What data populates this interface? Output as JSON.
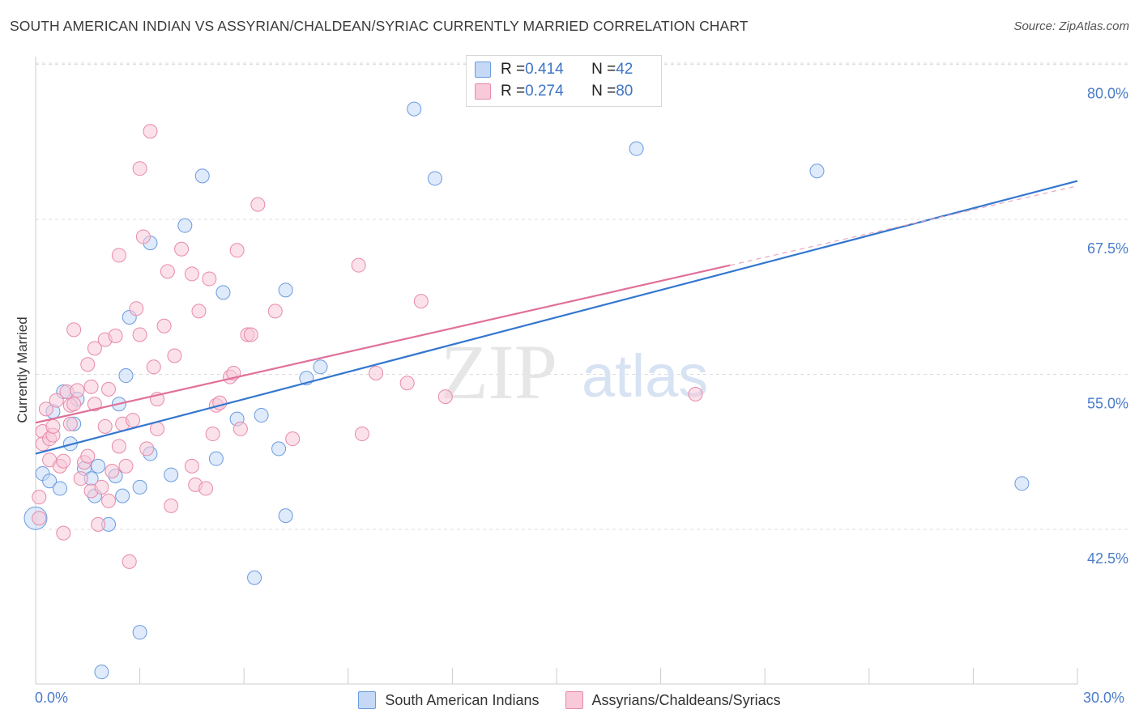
{
  "chart_data": {
    "type": "scatter",
    "title": "SOUTH AMERICAN INDIAN VS ASSYRIAN/CHALDEAN/SYRIAC CURRENTLY MARRIED CORRELATION CHART",
    "source": "Source: ZipAtlas.com",
    "ylabel": "Currently Married",
    "xlabel": "",
    "xlim": [
      0,
      30
    ],
    "ylim": [
      31,
      82
    ],
    "x_tick_labels": {
      "left": "0.0%",
      "right": "30.0%"
    },
    "y_ticks": [
      {
        "value": 42.5,
        "label": "42.5%"
      },
      {
        "value": 55.0,
        "label": "55.0%"
      },
      {
        "value": 67.5,
        "label": "67.5%"
      },
      {
        "value": 80.0,
        "label": "80.0%"
      }
    ],
    "grid": true,
    "watermark": {
      "zip": "ZIP",
      "atlas": "atlas"
    },
    "legend_placement": "top-center",
    "series": [
      {
        "name": "South American Indians",
        "color": "#6a9be0",
        "fill": "#c5d8f5",
        "stats": {
          "r_label": "R = ",
          "r": "0.414",
          "n_label": "N = ",
          "n": "42"
        },
        "trend": {
          "x0": 0,
          "y0": 48.6,
          "x1": 30,
          "y1": 70.6
        },
        "points": [
          [
            0.0,
            43.4
          ],
          [
            0.2,
            47.0
          ],
          [
            0.4,
            46.4
          ],
          [
            0.5,
            52.0
          ],
          [
            0.7,
            45.8
          ],
          [
            0.8,
            53.6
          ],
          [
            1.0,
            49.4
          ],
          [
            1.1,
            51.0
          ],
          [
            1.2,
            53.0
          ],
          [
            1.4,
            47.4
          ],
          [
            1.6,
            46.6
          ],
          [
            1.7,
            45.2
          ],
          [
            1.8,
            47.6
          ],
          [
            1.9,
            31.0
          ],
          [
            2.1,
            42.9
          ],
          [
            2.3,
            46.8
          ],
          [
            2.4,
            52.6
          ],
          [
            2.5,
            45.2
          ],
          [
            2.6,
            54.9
          ],
          [
            2.7,
            59.6
          ],
          [
            3.0,
            34.2
          ],
          [
            3.0,
            45.9
          ],
          [
            3.3,
            65.6
          ],
          [
            3.3,
            48.6
          ],
          [
            3.9,
            46.9
          ],
          [
            4.3,
            67.0
          ],
          [
            4.8,
            71.0
          ],
          [
            5.2,
            48.2
          ],
          [
            5.4,
            61.6
          ],
          [
            5.8,
            51.4
          ],
          [
            6.3,
            38.6
          ],
          [
            6.5,
            51.7
          ],
          [
            7.0,
            49.0
          ],
          [
            7.2,
            61.8
          ],
          [
            7.2,
            43.6
          ],
          [
            7.8,
            54.7
          ],
          [
            8.2,
            55.6
          ],
          [
            10.9,
            76.4
          ],
          [
            11.5,
            70.8
          ],
          [
            17.3,
            73.2
          ],
          [
            22.5,
            71.4
          ],
          [
            28.4,
            46.2
          ]
        ]
      },
      {
        "name": "Assyrians/Chaldeans/Syriacs",
        "color": "#e88aa8",
        "fill": "#f8c9d8",
        "stats": {
          "r_label": "R = ",
          "r": "0.274",
          "n_label": "N = ",
          "n": "80"
        },
        "trend": {
          "x0": 0,
          "y0": 51.1,
          "x1": 20,
          "y1": 63.8
        },
        "trend_dashed": {
          "x0": 20,
          "y0": 63.8,
          "x1": 30,
          "y1": 70.2
        },
        "points": [
          [
            0.1,
            45.1
          ],
          [
            0.1,
            43.4
          ],
          [
            0.2,
            50.4
          ],
          [
            0.2,
            49.4
          ],
          [
            0.3,
            52.2
          ],
          [
            0.4,
            48.1
          ],
          [
            0.4,
            49.8
          ],
          [
            0.5,
            50.1
          ],
          [
            0.5,
            50.8
          ],
          [
            0.6,
            52.9
          ],
          [
            0.7,
            47.6
          ],
          [
            0.8,
            42.2
          ],
          [
            0.8,
            48.0
          ],
          [
            0.9,
            53.6
          ],
          [
            1.0,
            51.0
          ],
          [
            1.0,
            52.5
          ],
          [
            1.1,
            58.6
          ],
          [
            1.1,
            52.6
          ],
          [
            1.2,
            53.7
          ],
          [
            1.3,
            46.6
          ],
          [
            1.4,
            47.9
          ],
          [
            1.5,
            48.4
          ],
          [
            1.5,
            55.8
          ],
          [
            1.6,
            54.0
          ],
          [
            1.6,
            45.6
          ],
          [
            1.7,
            57.1
          ],
          [
            1.7,
            52.6
          ],
          [
            1.8,
            42.9
          ],
          [
            1.9,
            45.9
          ],
          [
            2.0,
            50.8
          ],
          [
            2.0,
            57.8
          ],
          [
            2.1,
            44.8
          ],
          [
            2.1,
            53.8
          ],
          [
            2.2,
            47.2
          ],
          [
            2.3,
            58.1
          ],
          [
            2.4,
            64.6
          ],
          [
            2.4,
            49.2
          ],
          [
            2.5,
            51.0
          ],
          [
            2.6,
            47.6
          ],
          [
            2.7,
            39.9
          ],
          [
            2.8,
            51.3
          ],
          [
            2.9,
            60.3
          ],
          [
            3.0,
            71.6
          ],
          [
            3.0,
            58.2
          ],
          [
            3.1,
            66.1
          ],
          [
            3.2,
            49.0
          ],
          [
            3.3,
            74.6
          ],
          [
            3.4,
            55.6
          ],
          [
            3.5,
            53.0
          ],
          [
            3.5,
            50.6
          ],
          [
            3.7,
            58.9
          ],
          [
            3.8,
            63.3
          ],
          [
            3.9,
            44.4
          ],
          [
            4.0,
            56.5
          ],
          [
            4.2,
            65.1
          ],
          [
            4.5,
            47.6
          ],
          [
            4.5,
            63.1
          ],
          [
            4.6,
            46.1
          ],
          [
            4.7,
            60.1
          ],
          [
            4.9,
            45.8
          ],
          [
            5.0,
            62.7
          ],
          [
            5.1,
            50.2
          ],
          [
            5.2,
            52.5
          ],
          [
            5.3,
            52.7
          ],
          [
            5.6,
            54.8
          ],
          [
            5.7,
            55.1
          ],
          [
            5.8,
            65.0
          ],
          [
            5.9,
            50.6
          ],
          [
            6.1,
            58.2
          ],
          [
            6.2,
            58.2
          ],
          [
            6.4,
            68.7
          ],
          [
            6.9,
            60.1
          ],
          [
            7.4,
            49.8
          ],
          [
            9.3,
            63.8
          ],
          [
            9.4,
            50.2
          ],
          [
            9.8,
            55.1
          ],
          [
            10.7,
            54.3
          ],
          [
            11.1,
            60.9
          ],
          [
            11.8,
            53.2
          ],
          [
            19.0,
            53.4
          ]
        ]
      }
    ]
  }
}
